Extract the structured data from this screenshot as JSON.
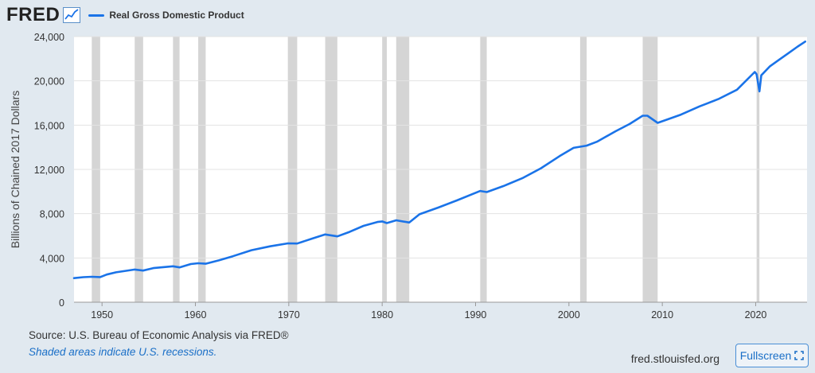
{
  "header": {
    "logo": "FRED",
    "logo_icon": "trend-line-icon",
    "legend_label": "Real Gross Domestic Product"
  },
  "footer": {
    "source": "Source: U.S. Bureau of Economic Analysis via FRED®",
    "note": "Shaded areas indicate U.S. recessions.",
    "site": "fred.stlouisfed.org",
    "fullscreen_label": "Fullscreen",
    "fullscreen_icon": "expand-icon"
  },
  "colors": {
    "background": "#e1e9f0",
    "plot_background": "#ffffff",
    "series": "#1a73e8",
    "recession": "#d5d5d5",
    "link": "#1a6fc7"
  },
  "chart_data": {
    "type": "line",
    "title": "Real Gross Domestic Product",
    "ylabel": "Billions of Chained 2017 Dollars",
    "xlim": [
      1947.0,
      2025.5
    ],
    "ylim": [
      0,
      24000
    ],
    "x_ticks": [
      1950,
      1960,
      1970,
      1980,
      1990,
      2000,
      2010,
      2020
    ],
    "y_ticks": [
      0,
      4000,
      8000,
      12000,
      16000,
      20000,
      24000
    ],
    "y_tick_labels": [
      "0",
      "4,000",
      "8,000",
      "12,000",
      "16,000",
      "20,000",
      "24,000"
    ],
    "grid": "horizontal",
    "recessions": [
      [
        1948.9,
        1949.8
      ],
      [
        1953.5,
        1954.4
      ],
      [
        1957.6,
        1958.3
      ],
      [
        1960.3,
        1961.1
      ],
      [
        1969.9,
        1970.9
      ],
      [
        1973.9,
        1975.2
      ],
      [
        1980.0,
        1980.5
      ],
      [
        1981.5,
        1982.9
      ],
      [
        1990.5,
        1991.2
      ],
      [
        2001.2,
        2001.9
      ],
      [
        2007.9,
        2009.5
      ],
      [
        2020.1,
        2020.4
      ]
    ],
    "series": [
      {
        "name": "Real Gross Domestic Product",
        "x": [
          1947.0,
          1948.0,
          1948.9,
          1949.8,
          1950.5,
          1951.5,
          1953.5,
          1954.4,
          1955.5,
          1957.6,
          1958.3,
          1959.5,
          1960.3,
          1961.1,
          1962.5,
          1964.0,
          1966.0,
          1968.0,
          1969.9,
          1970.9,
          1972.5,
          1973.9,
          1975.2,
          1976.5,
          1978.0,
          1979.5,
          1980.0,
          1980.5,
          1981.5,
          1982.9,
          1984.0,
          1986.0,
          1988.0,
          1990.5,
          1991.2,
          1993.0,
          1995.0,
          1997.0,
          1999.0,
          2000.5,
          2001.2,
          2001.9,
          2003.0,
          2005.0,
          2006.5,
          2007.9,
          2008.4,
          2009.5,
          2010.5,
          2012.0,
          2014.0,
          2016.0,
          2018.0,
          2019.9,
          2020.1,
          2020.4,
          2020.6,
          2021.5,
          2022.5,
          2023.5,
          2024.5,
          2025.3
        ],
        "values": [
          2180,
          2260,
          2300,
          2270,
          2500,
          2700,
          2950,
          2860,
          3080,
          3250,
          3150,
          3450,
          3520,
          3480,
          3780,
          4150,
          4700,
          5050,
          5320,
          5300,
          5750,
          6120,
          5950,
          6350,
          6900,
          7250,
          7300,
          7150,
          7400,
          7200,
          7950,
          8550,
          9200,
          10050,
          9950,
          10500,
          11200,
          12100,
          13200,
          13950,
          14050,
          14150,
          14500,
          15450,
          16100,
          16850,
          16850,
          16200,
          16500,
          16950,
          17700,
          18350,
          19200,
          20800,
          20600,
          19050,
          20500,
          21300,
          21900,
          22500,
          23100,
          23550
        ]
      }
    ]
  }
}
